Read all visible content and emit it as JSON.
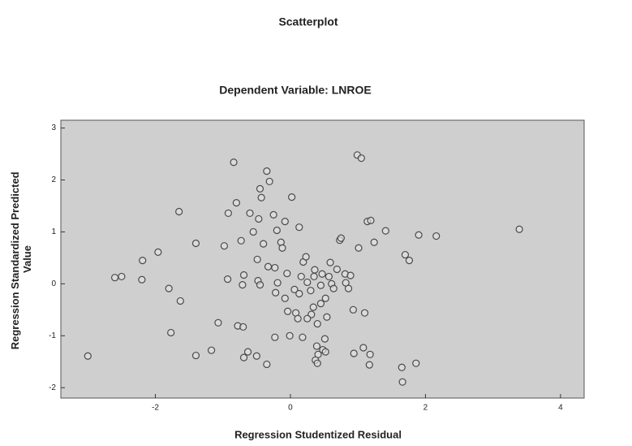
{
  "chart_data": {
    "type": "scatter",
    "title": "Scatterplot",
    "subtitle": "Dependent Variable: LNROE",
    "x_label": "Regression Studentized Residual",
    "y_label": [
      "Regression Standardized Predicted",
      "Value"
    ],
    "xlim": [
      -3.4,
      4.35
    ],
    "ylim": [
      -2.2,
      3.15
    ],
    "xticks": [
      -2,
      0,
      2,
      4
    ],
    "yticks": [
      -2,
      -1,
      0,
      1,
      2,
      3
    ],
    "grid": false,
    "color": "#4a4a4a",
    "x": [
      -3.0,
      -2.6,
      -2.5,
      -2.19,
      -2.2,
      -1.96,
      -1.8,
      -1.63,
      -1.77,
      -1.65,
      -1.4,
      -1.4,
      -1.17,
      -1.07,
      -0.98,
      -0.92,
      -0.84,
      -0.8,
      -0.93,
      -0.78,
      -0.7,
      -0.69,
      -0.63,
      -0.73,
      -0.6,
      -0.55,
      -0.5,
      -0.48,
      -0.45,
      -0.47,
      -0.71,
      -0.69,
      -0.49,
      -0.43,
      -0.45,
      -0.35,
      -0.31,
      -0.4,
      -0.33,
      -0.35,
      -0.25,
      -0.2,
      -0.23,
      -0.19,
      -0.22,
      -0.23,
      -0.14,
      -0.12,
      -0.08,
      -0.05,
      -0.08,
      -0.04,
      -0.01,
      0.02,
      0.06,
      0.08,
      0.13,
      0.16,
      0.19,
      0.13,
      0.11,
      0.18,
      0.23,
      0.25,
      0.3,
      0.31,
      0.25,
      0.36,
      0.35,
      0.4,
      0.34,
      0.39,
      0.41,
      0.37,
      0.4,
      0.45,
      0.47,
      0.48,
      0.51,
      0.52,
      0.54,
      0.57,
      0.59,
      0.61,
      0.64,
      0.52,
      0.45,
      0.73,
      0.69,
      0.81,
      0.82,
      0.89,
      0.86,
      0.75,
      0.94,
      0.93,
      0.99,
      1.05,
      1.01,
      1.1,
      1.08,
      1.18,
      1.14,
      1.19,
      1.24,
      1.17,
      1.65,
      1.41,
      1.7,
      1.76,
      1.86,
      1.9,
      1.66,
      2.16,
      3.39
    ],
    "y": [
      -1.39,
      0.12,
      0.14,
      0.45,
      0.08,
      0.61,
      -0.09,
      -0.33,
      -0.94,
      1.39,
      0.78,
      -1.38,
      -1.28,
      -0.75,
      0.73,
      1.36,
      2.34,
      1.56,
      0.09,
      -0.81,
      -0.83,
      -1.42,
      -1.31,
      0.83,
      1.36,
      1.0,
      -1.39,
      0.06,
      -0.02,
      1.25,
      -0.02,
      0.17,
      0.47,
      1.66,
      1.83,
      2.17,
      1.97,
      0.77,
      0.33,
      -1.55,
      1.33,
      1.03,
      0.31,
      0.02,
      -0.17,
      -1.03,
      0.8,
      0.69,
      1.2,
      0.2,
      -0.28,
      -0.53,
      -1.0,
      1.67,
      -0.11,
      -0.56,
      1.09,
      0.14,
      0.42,
      -0.19,
      -0.67,
      -1.03,
      0.52,
      0.03,
      -0.13,
      -0.59,
      -0.67,
      0.27,
      0.14,
      -0.77,
      -0.45,
      -1.2,
      -1.36,
      -1.47,
      -1.53,
      -0.03,
      0.19,
      -1.27,
      -1.06,
      -1.31,
      -0.64,
      0.14,
      0.41,
      0.0,
      -0.09,
      -0.28,
      -0.38,
      0.84,
      0.28,
      0.19,
      0.02,
      0.16,
      -0.09,
      0.88,
      -1.34,
      -0.5,
      2.48,
      2.42,
      0.69,
      -0.56,
      -1.23,
      -1.36,
      1.2,
      1.22,
      0.8,
      -1.56,
      -1.61,
      1.02,
      0.56,
      0.45,
      -1.53,
      0.94,
      -1.89,
      0.92,
      1.05
    ]
  }
}
